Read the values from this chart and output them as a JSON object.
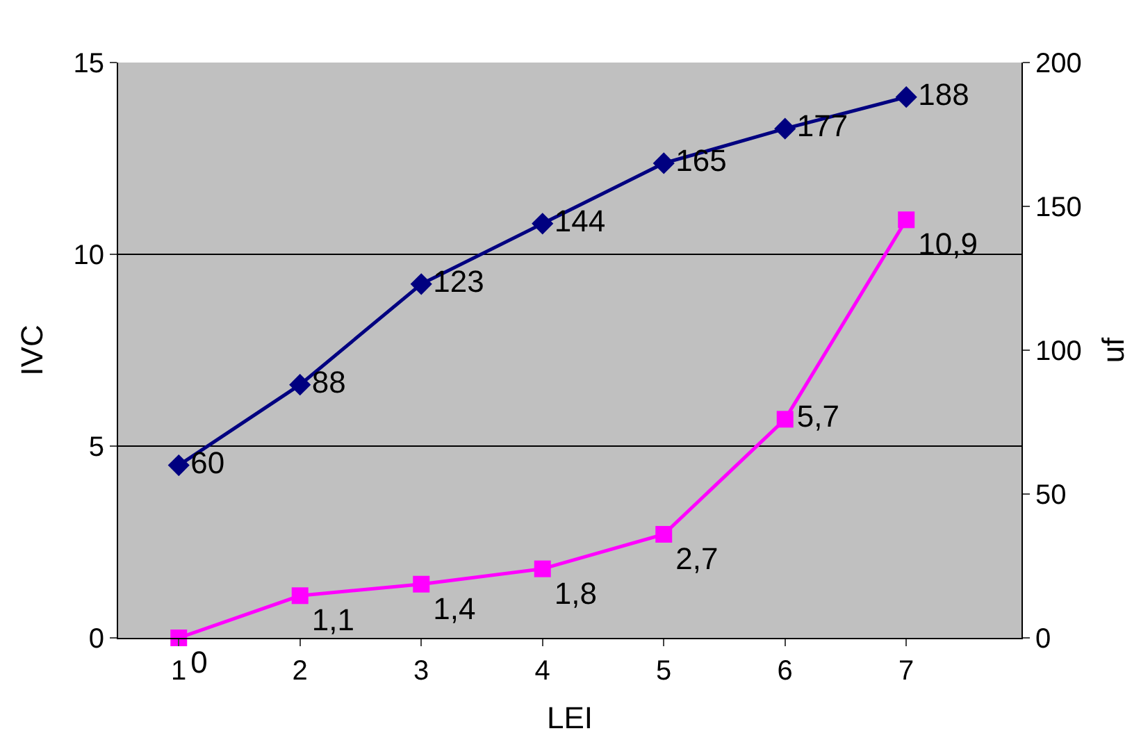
{
  "chart_data": {
    "type": "line",
    "xlabel": "LEI",
    "ylabel": "IVC",
    "y2label": "uf",
    "categories": [
      "1",
      "2",
      "3",
      "4",
      "5",
      "6",
      "7"
    ],
    "series": [
      {
        "color": "#000080",
        "axis": "y2",
        "marker": "diamond",
        "values": [
          60,
          88,
          123,
          144,
          165,
          177,
          188
        ],
        "value_labels": [
          "60",
          "88",
          "123",
          "144",
          "165",
          "177",
          "188"
        ]
      },
      {
        "color": "#ff00ff",
        "marker": "square",
        "values": [
          0,
          1.1,
          1.4,
          1.8,
          2.7,
          5.7,
          10.9
        ],
        "value_labels": [
          "0",
          "1,1",
          "1,4",
          "1,8",
          "2,7",
          "5,7",
          "10,9"
        ]
      }
    ],
    "ylim": [
      0,
      15
    ],
    "yticks": [
      0,
      5,
      10,
      15
    ],
    "y2lim": [
      0,
      200
    ],
    "y2ticks": [
      0,
      50,
      100,
      150,
      200
    ],
    "grid": "y"
  }
}
